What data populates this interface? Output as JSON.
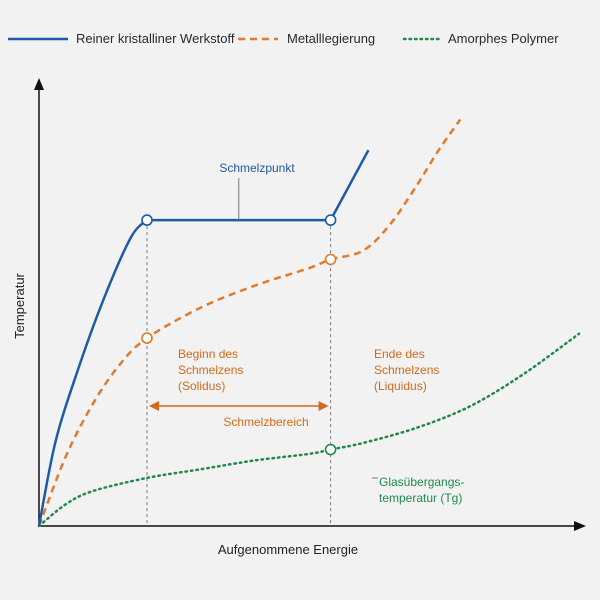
{
  "chart_data": {
    "type": "line",
    "title": "",
    "xlabel": "Aufgenommene Energie",
    "ylabel": "Temperatur",
    "xlim": [
      0,
      100
    ],
    "ylim": [
      0,
      100
    ],
    "grid": false,
    "legend_position": "top",
    "colors": {
      "crystal": "#1f5aa6",
      "alloy": "#e07b2a",
      "polymer": "#1e8a4c",
      "annotation_orange": "#d26a1a",
      "annotation_green": "#1e8a4c",
      "axis": "#111111",
      "guide": "#7a7a7a"
    },
    "series": [
      {
        "name": "Reiner kristalliner Werkstoff",
        "style": "solid",
        "points": [
          [
            0,
            0
          ],
          [
            3,
            19
          ],
          [
            7,
            35
          ],
          [
            12,
            52
          ],
          [
            17,
            66
          ],
          [
            20,
            70
          ],
          [
            35,
            70
          ],
          [
            54,
            70
          ],
          [
            61,
            86
          ]
        ],
        "markers": [
          [
            20,
            70
          ],
          [
            54,
            70
          ]
        ]
      },
      {
        "name": "Metalllegierung",
        "style": "dashed",
        "points": [
          [
            0,
            0
          ],
          [
            5,
            16
          ],
          [
            10,
            28
          ],
          [
            15,
            37
          ],
          [
            20,
            43
          ],
          [
            30,
            50
          ],
          [
            40,
            55
          ],
          [
            50,
            59
          ],
          [
            54,
            61
          ],
          [
            60,
            63
          ],
          [
            65,
            69
          ],
          [
            70,
            78
          ],
          [
            74,
            86
          ],
          [
            78,
            93
          ]
        ],
        "markers": [
          [
            20,
            43
          ],
          [
            54,
            61
          ]
        ]
      },
      {
        "name": "Amorphes Polymer",
        "style": "dotted",
        "points": [
          [
            0,
            0
          ],
          [
            5,
            5
          ],
          [
            10,
            8
          ],
          [
            20,
            11
          ],
          [
            30,
            13
          ],
          [
            40,
            15
          ],
          [
            50,
            16.5
          ],
          [
            54,
            17.5
          ],
          [
            60,
            19
          ],
          [
            70,
            22.5
          ],
          [
            80,
            27.5
          ],
          [
            90,
            35
          ],
          [
            100,
            44
          ]
        ],
        "markers": [
          [
            54,
            17.5
          ]
        ]
      }
    ],
    "annotations": {
      "schmelzpunkt": "Schmelzpunkt",
      "solidus_line1": "Beginn des",
      "solidus_line2": "Schmelzens",
      "solidus_line3": "(Solidus)",
      "liquidus_line1": "Ende des",
      "liquidus_line2": "Schmelzens",
      "liquidus_line3": "(Liquidus)",
      "schmelzbereich": "Schmelzbereich",
      "tg_line1": "Glasübergangs-",
      "tg_line2": "temperatur (Tg)"
    },
    "guides_x": [
      20,
      54
    ],
    "range_arrow": [
      20,
      54
    ]
  }
}
